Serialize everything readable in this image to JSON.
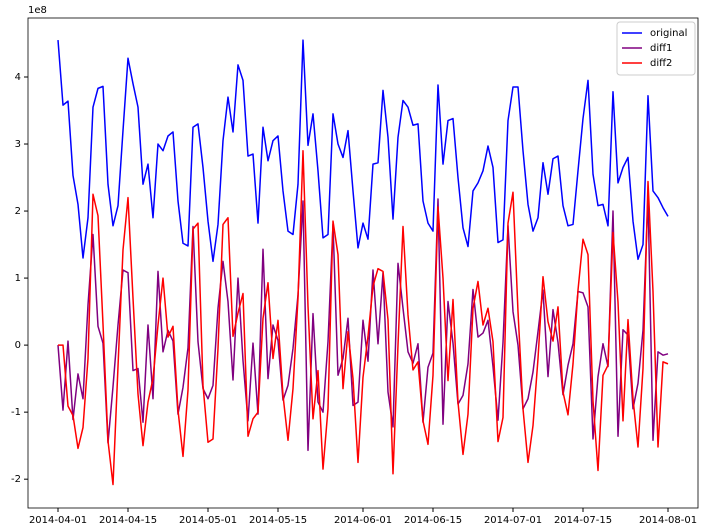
{
  "chart_data": {
    "type": "line",
    "offset_label": "1e8",
    "x": [
      "2014-04-01",
      "2014-04-02",
      "2014-04-03",
      "2014-04-04",
      "2014-04-05",
      "2014-04-06",
      "2014-04-07",
      "2014-04-08",
      "2014-04-09",
      "2014-04-10",
      "2014-04-11",
      "2014-04-12",
      "2014-04-13",
      "2014-04-14",
      "2014-04-15",
      "2014-04-16",
      "2014-04-17",
      "2014-04-18",
      "2014-04-19",
      "2014-04-20",
      "2014-04-21",
      "2014-04-22",
      "2014-04-23",
      "2014-04-24",
      "2014-04-25",
      "2014-04-26",
      "2014-04-27",
      "2014-04-28",
      "2014-04-29",
      "2014-04-30",
      "2014-05-01",
      "2014-05-02",
      "2014-05-03",
      "2014-05-04",
      "2014-05-05",
      "2014-05-06",
      "2014-05-07",
      "2014-05-08",
      "2014-05-09",
      "2014-05-10",
      "2014-05-11",
      "2014-05-12",
      "2014-05-13",
      "2014-05-14",
      "2014-05-15",
      "2014-05-16",
      "2014-05-17",
      "2014-05-18",
      "2014-05-19",
      "2014-05-20",
      "2014-05-21",
      "2014-05-22",
      "2014-05-23",
      "2014-05-24",
      "2014-05-25",
      "2014-05-26",
      "2014-05-27",
      "2014-05-28",
      "2014-05-29",
      "2014-05-30",
      "2014-05-31",
      "2014-06-01",
      "2014-06-02",
      "2014-06-03",
      "2014-06-04",
      "2014-06-05",
      "2014-06-06",
      "2014-06-07",
      "2014-06-08",
      "2014-06-09",
      "2014-06-10",
      "2014-06-11",
      "2014-06-12",
      "2014-06-13",
      "2014-06-14",
      "2014-06-15",
      "2014-06-16",
      "2014-06-17",
      "2014-06-18",
      "2014-06-19",
      "2014-06-20",
      "2014-06-21",
      "2014-06-22",
      "2014-06-23",
      "2014-06-24",
      "2014-06-25",
      "2014-06-26",
      "2014-06-27",
      "2014-06-28",
      "2014-06-29",
      "2014-06-30",
      "2014-07-01",
      "2014-07-02",
      "2014-07-03",
      "2014-07-04",
      "2014-07-05",
      "2014-07-06",
      "2014-07-07",
      "2014-07-08",
      "2014-07-09",
      "2014-07-10",
      "2014-07-11",
      "2014-07-12",
      "2014-07-13",
      "2014-07-14",
      "2014-07-15",
      "2014-07-16",
      "2014-07-17",
      "2014-07-18",
      "2014-07-19",
      "2014-07-20",
      "2014-07-21",
      "2014-07-22",
      "2014-07-23",
      "2014-07-24",
      "2014-07-25",
      "2014-07-26",
      "2014-07-27",
      "2014-07-28",
      "2014-07-29",
      "2014-07-30",
      "2014-07-31",
      "2014-08-01"
    ],
    "series": [
      {
        "name": "original",
        "color": "#0000ff",
        "values": [
          4.55,
          3.58,
          3.64,
          2.53,
          2.1,
          1.3,
          1.9,
          3.55,
          3.83,
          3.86,
          2.4,
          1.78,
          2.08,
          3.2,
          4.28,
          3.9,
          3.55,
          2.4,
          2.7,
          1.9,
          3.0,
          2.9,
          3.12,
          3.18,
          2.15,
          1.52,
          1.48,
          3.25,
          3.3,
          2.65,
          1.85,
          1.25,
          1.8,
          3.05,
          3.7,
          3.18,
          4.18,
          3.95,
          2.82,
          2.85,
          1.82,
          3.25,
          2.75,
          3.05,
          3.12,
          2.3,
          1.7,
          1.65,
          2.4,
          4.55,
          2.98,
          3.45,
          2.6,
          1.6,
          1.65,
          3.45,
          3.0,
          2.8,
          3.2,
          2.3,
          1.45,
          1.82,
          1.58,
          2.7,
          2.72,
          3.8,
          3.1,
          1.88,
          3.1,
          3.65,
          3.55,
          3.28,
          3.3,
          2.15,
          1.82,
          1.7,
          3.88,
          2.7,
          3.35,
          3.38,
          2.5,
          1.75,
          1.47,
          2.3,
          2.42,
          2.6,
          2.97,
          2.65,
          1.53,
          1.57,
          3.35,
          3.85,
          3.85,
          2.9,
          2.1,
          1.7,
          1.9,
          2.72,
          2.25,
          2.78,
          2.82,
          2.08,
          1.78,
          1.8,
          2.6,
          3.38,
          3.95,
          2.55,
          2.08,
          2.1,
          1.78,
          3.78,
          2.42,
          2.65,
          2.8,
          1.85,
          1.28,
          1.5,
          3.72,
          2.3,
          2.2,
          2.05,
          1.92
        ]
      },
      {
        "name": "diff1",
        "color": "#800080",
        "values": [
          0,
          -0.97,
          0.06,
          -1.11,
          -0.43,
          -0.8,
          0.6,
          1.65,
          0.28,
          0.03,
          -1.46,
          -0.62,
          0.3,
          1.12,
          1.08,
          -0.38,
          -0.35,
          -1.15,
          0.3,
          -0.8,
          1.1,
          -0.1,
          0.22,
          0.06,
          -1.03,
          -0.63,
          -0.04,
          1.77,
          0.05,
          -0.65,
          -0.8,
          -0.6,
          0.55,
          1.25,
          0.65,
          -0.52,
          1.0,
          -0.23,
          -1.13,
          0.03,
          -1.03,
          1.43,
          -0.5,
          0.3,
          0.07,
          -0.82,
          -0.6,
          -0.05,
          0.75,
          2.15,
          -1.57,
          0.47,
          -0.85,
          -1.0,
          0.05,
          1.8,
          -0.45,
          -0.2,
          0.4,
          -0.9,
          -0.85,
          0.37,
          -0.24,
          1.12,
          0.02,
          1.08,
          -0.7,
          -1.22,
          1.22,
          0.55,
          -0.1,
          -0.27,
          0.02,
          -1.15,
          -0.33,
          -0.12,
          2.18,
          -1.18,
          0.65,
          0.03,
          -0.88,
          -0.75,
          -0.28,
          0.83,
          0.12,
          0.18,
          0.37,
          -0.32,
          -1.12,
          0.04,
          1.78,
          0.5,
          0,
          -0.95,
          -0.8,
          -0.4,
          0.2,
          0.82,
          -0.47,
          0.53,
          0.04,
          -0.74,
          -0.3,
          0.02,
          0.8,
          0.78,
          0.57,
          -1.4,
          -0.47,
          0.02,
          -0.32,
          2.0,
          -1.36,
          0.23,
          0.15,
          -0.95,
          -0.57,
          0.22,
          2.22,
          -1.42,
          -0.1,
          -0.15,
          -0.13
        ]
      },
      {
        "name": "diff2",
        "color": "#ff0000",
        "values": [
          0,
          0,
          -0.91,
          -1.05,
          -1.54,
          -1.23,
          -0.2,
          2.25,
          1.93,
          0.31,
          -1.43,
          -2.08,
          -0.32,
          1.42,
          2.2,
          0.7,
          -0.73,
          -1.5,
          -0.85,
          -0.5,
          0.3,
          1.0,
          0.12,
          0.28,
          -0.97,
          -1.66,
          -0.67,
          1.73,
          1.82,
          -0.6,
          -1.45,
          -1.4,
          -0.05,
          1.8,
          1.9,
          0.13,
          0.48,
          0.77,
          -1.36,
          -1.1,
          -1.0,
          0.4,
          0.93,
          -0.2,
          0.37,
          -0.75,
          -1.42,
          -0.65,
          0.7,
          2.9,
          0.58,
          -1.1,
          -0.38,
          -1.85,
          -0.95,
          1.85,
          1.35,
          -0.65,
          0.2,
          -0.5,
          -1.75,
          -0.48,
          0.13,
          0.88,
          1.14,
          1.1,
          0.38,
          -1.92,
          0,
          1.77,
          0.45,
          -0.37,
          -0.25,
          -1.13,
          -1.48,
          -0.45,
          2.06,
          1.0,
          -0.53,
          0.68,
          -0.85,
          -1.63,
          -1.03,
          0.55,
          0.95,
          0.3,
          0.55,
          0.05,
          -1.44,
          -1.08,
          1.82,
          2.28,
          0.5,
          -0.95,
          -1.75,
          -1.2,
          -0.2,
          1.02,
          0.35,
          0.06,
          0.57,
          -0.7,
          -1.04,
          -0.28,
          0.82,
          1.58,
          1.35,
          -0.83,
          -1.87,
          -0.45,
          -0.3,
          1.68,
          0.64,
          -1.13,
          0.38,
          -0.8,
          -1.52,
          -0.35,
          2.44,
          0.8,
          -1.52,
          -0.25,
          -0.28
        ]
      }
    ],
    "xlim": [
      "2014-03-26",
      "2014-08-07"
    ],
    "xticks": [
      "2014-04-01",
      "2014-04-15",
      "2014-05-01",
      "2014-05-15",
      "2014-06-01",
      "2014-06-15",
      "2014-07-01",
      "2014-07-15",
      "2014-08-01"
    ],
    "ylim": [
      -2.43,
      4.88
    ],
    "yticks": [
      -2,
      -1,
      0,
      1,
      2,
      3,
      4
    ],
    "legend": "upper right"
  }
}
